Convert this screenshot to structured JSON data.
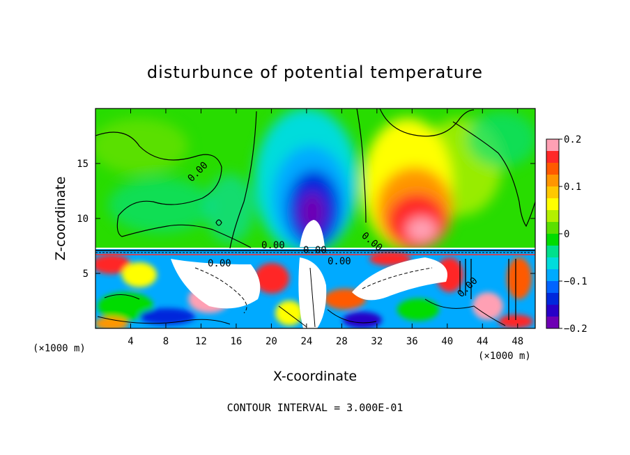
{
  "chart_data": {
    "type": "heatmap",
    "title": "disturbunce of potential temperature",
    "xlabel": "X-coordinate",
    "ylabel": "Z-coordinate",
    "x_unit": "(×1000 m)",
    "z_unit": "(×1000 m)",
    "xlim": [
      0,
      50
    ],
    "ylim": [
      0,
      20
    ],
    "x_ticks": [
      4,
      8,
      12,
      16,
      20,
      24,
      28,
      32,
      36,
      40,
      44,
      48
    ],
    "y_ticks": [
      5,
      10,
      15
    ],
    "colorbar": {
      "range": [
        -0.2,
        0.2
      ],
      "tick_values": [
        0.2,
        0.1,
        0,
        -0.1,
        -0.2
      ],
      "tick_labels": [
        "0.2",
        "0.1",
        "0",
        "−0.1",
        "−0.2"
      ],
      "colors": [
        "#ffa0b4",
        "#ff2828",
        "#ff5a00",
        "#ff9600",
        "#ffc800",
        "#ffff00",
        "#b4f000",
        "#5ae000",
        "#00dc00",
        "#00e08c",
        "#00dcdc",
        "#00aaff",
        "#0064ff",
        "#0028dc",
        "#2800c8",
        "#6e00b4"
      ]
    },
    "contour_labels": [
      "0.00",
      "0.00",
      "0.00",
      "0.00",
      "0.00",
      "0.00",
      "0.00"
    ],
    "contour_interval_text": "CONTOUR INTERVAL = 3.000E-01"
  }
}
